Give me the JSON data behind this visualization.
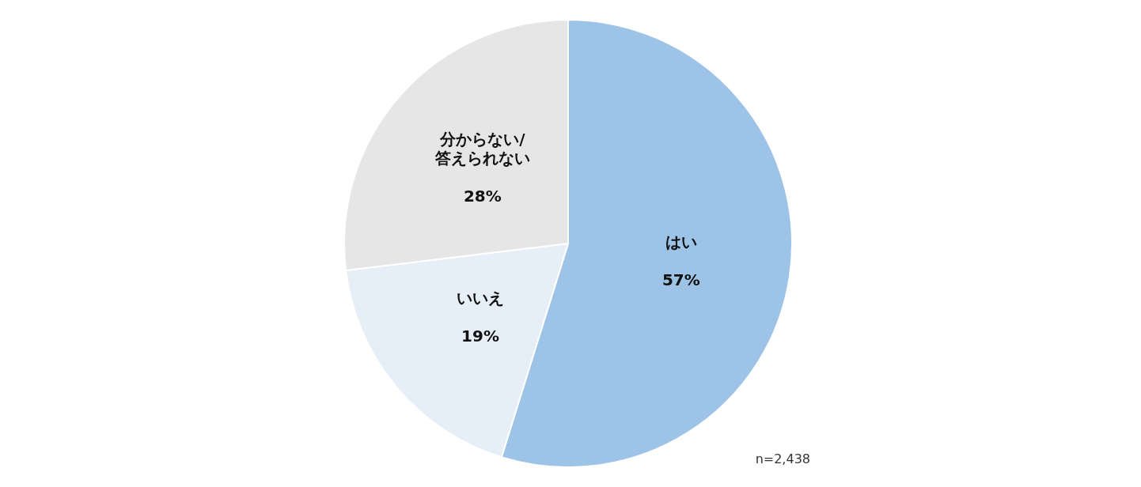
{
  "chart_data": {
    "type": "pie",
    "categories": [
      "はい",
      "いいえ",
      "分からない/答えられない"
    ],
    "values": [
      57,
      19,
      28
    ],
    "value_labels": [
      "57%",
      "19%",
      "28%"
    ],
    "colors": [
      "#9dc3e6",
      "#e6eef8",
      "#e6e6e6"
    ],
    "legend": false,
    "annotations": [
      "n=2,438"
    ]
  }
}
